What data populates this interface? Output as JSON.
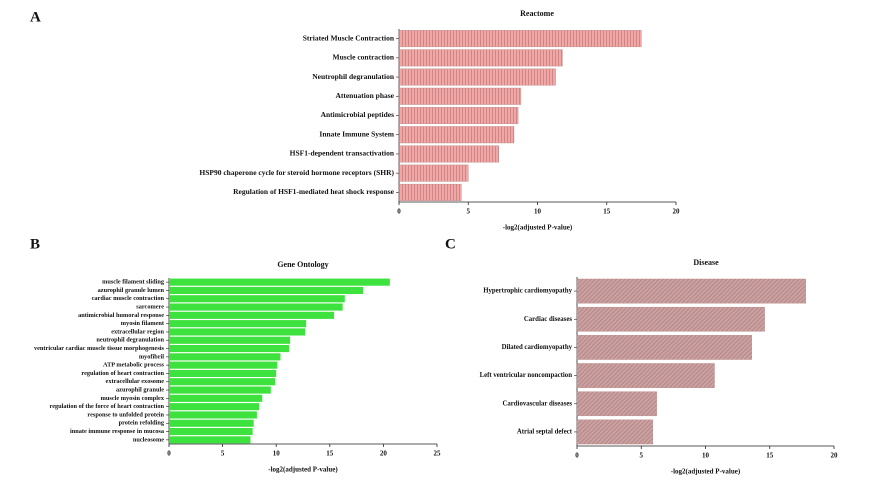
{
  "chart_data": [
    {
      "type": "hbar",
      "panel": "A",
      "title": "Reactome",
      "xlabel": "-log2(adjusted P-value)",
      "color": "#f2a7a7",
      "hatch": "vertical",
      "categories": [
        "Striated Muscle Contraction",
        "Muscle contraction",
        "Neutrophil degranulation",
        "Attenuation phase",
        "Antimicrobial peptides",
        "Innate Immune System",
        "HSF1-dependent transactivation",
        "HSP90 chaperone cycle for steroid hormone receptors (SHR)",
        "Regulation of HSF1-mediated heat shock response"
      ],
      "values": [
        17.5,
        11.8,
        11.3,
        8.8,
        8.6,
        8.3,
        7.2,
        5.0,
        4.5
      ],
      "xlim": [
        0,
        20
      ],
      "xticks": [
        0,
        5,
        10,
        15,
        20
      ]
    },
    {
      "type": "hbar",
      "panel": "B",
      "title": "Gene Ontology",
      "xlabel": "-log2(adjusted P-value)",
      "color": "#3ee23e",
      "hatch": "none",
      "categories": [
        "muscle filament sliding",
        "azurophil granule lumen",
        "cardiac muscle contraction",
        "sarcomere",
        "antimicrobial humoral response",
        "myosin filament",
        "extracellular region",
        "neutrophil degranulation",
        "ventricular cardiac muscle tissue morphogenesis",
        "myofibril",
        "ATP metabolic process",
        "regulation of heart contraction",
        "extracellular exosome",
        "azurophil granule",
        "muscle myosin complex",
        "regulation of the force of heart contraction",
        "response to unfolded protein",
        "protein refolding",
        "innate immune response in mucosa",
        "nucleosome"
      ],
      "values": [
        20.6,
        18.1,
        16.4,
        16.2,
        15.4,
        12.8,
        12.7,
        11.3,
        11.2,
        10.4,
        10.1,
        10.0,
        9.9,
        9.5,
        8.7,
        8.4,
        8.2,
        7.9,
        7.8,
        7.6
      ],
      "xlim": [
        0,
        25
      ],
      "xticks": [
        0,
        5,
        10,
        15,
        20,
        25
      ]
    },
    {
      "type": "hbar",
      "panel": "C",
      "title": "Disease",
      "xlabel": "-log2(adjusted P-value)",
      "color": "#c9a3a3",
      "hatch": "diagonal",
      "categories": [
        "Hypertrophic cardiomyopathy",
        "Cardiac diseases",
        "Dilated cardiomyopathy",
        "Left ventricular noncompaction",
        "Cardiovascular diseases",
        "Atrial septal defect"
      ],
      "values": [
        17.8,
        14.6,
        13.6,
        10.7,
        6.2,
        5.9
      ],
      "xlim": [
        0,
        20
      ],
      "xticks": [
        0,
        5,
        10,
        15,
        20
      ]
    }
  ]
}
